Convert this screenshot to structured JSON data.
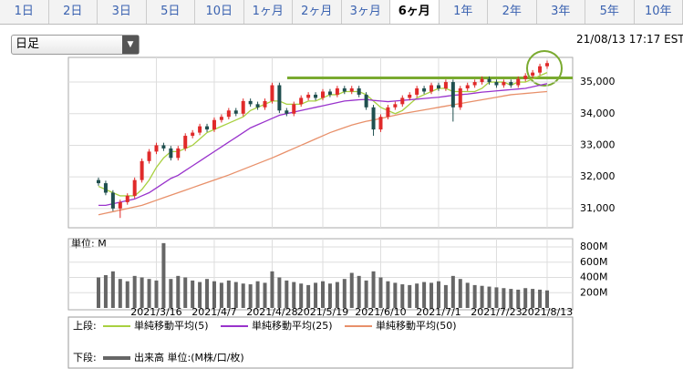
{
  "tabs": [
    "1日",
    "2日",
    "3日",
    "5日",
    "10日",
    "1ヶ月",
    "2ヶ月",
    "3ヶ月",
    "6ヶ月",
    "1年",
    "2年",
    "3年",
    "5年",
    "10年"
  ],
  "selected_tab": 8,
  "select_label": "日足",
  "timestamp": "21/08/13 17:17 EST",
  "legend": {
    "upper_label": "上段:",
    "lower_label": "下段:"
  },
  "chart_data": [
    {
      "type": "candlestick",
      "categories": [
        null,
        null,
        null,
        null,
        null,
        null,
        null,
        null,
        "2021/3/16",
        null,
        null,
        null,
        null,
        null,
        null,
        null,
        "2021/4/7",
        null,
        null,
        null,
        null,
        null,
        null,
        null,
        "2021/4/28",
        null,
        null,
        null,
        null,
        null,
        null,
        "2021/5/19",
        null,
        null,
        null,
        null,
        null,
        null,
        null,
        "2021/6/10",
        null,
        null,
        null,
        null,
        null,
        null,
        null,
        "2021/7/1",
        null,
        null,
        null,
        null,
        null,
        null,
        null,
        "2021/7/23",
        null,
        null,
        null,
        null,
        null,
        null,
        "2021/8/13"
      ],
      "open": [
        31900,
        31800,
        31500,
        31000,
        31200,
        31400,
        31900,
        32500,
        32800,
        33000,
        32900,
        32600,
        32900,
        33300,
        33400,
        33600,
        33500,
        33800,
        33900,
        34100,
        34000,
        34400,
        34300,
        34200,
        34400,
        34900,
        34100,
        34000,
        34300,
        34500,
        34600,
        34500,
        34700,
        34600,
        34800,
        34700,
        34800,
        34600,
        34200,
        33500,
        33900,
        34200,
        34300,
        34500,
        34600,
        34800,
        34700,
        34900,
        34800,
        35000,
        34200,
        34800,
        34900,
        35000,
        35100,
        35000,
        34900,
        35000,
        34900,
        35100,
        35200,
        35300,
        35500
      ],
      "high": [
        31980,
        31880,
        31580,
        31280,
        31480,
        31980,
        32580,
        32880,
        33080,
        33080,
        32980,
        32980,
        33380,
        33480,
        33680,
        33680,
        33880,
        33980,
        34180,
        34180,
        34480,
        34480,
        34380,
        34480,
        34980,
        34980,
        34180,
        34380,
        34580,
        34680,
        34680,
        34780,
        34780,
        34880,
        34880,
        34880,
        34880,
        34680,
        34280,
        33980,
        34280,
        34380,
        34580,
        34680,
        34880,
        34880,
        34980,
        34980,
        35080,
        35080,
        34880,
        34980,
        35080,
        35180,
        35180,
        35080,
        35080,
        35080,
        35180,
        35280,
        35380,
        35580,
        35680
      ],
      "low": [
        31720,
        31420,
        30920,
        30700,
        31120,
        31320,
        31820,
        32420,
        32720,
        32820,
        32520,
        32520,
        32820,
        33220,
        33320,
        33420,
        33420,
        33720,
        33820,
        33920,
        33920,
        34220,
        34120,
        34120,
        34320,
        34020,
        33920,
        33920,
        34220,
        34420,
        34420,
        34420,
        34520,
        34520,
        34620,
        34620,
        34520,
        34120,
        33300,
        33420,
        33820,
        34120,
        34220,
        34420,
        34520,
        34620,
        34620,
        34720,
        34720,
        33750,
        34120,
        34720,
        34820,
        34920,
        34920,
        34820,
        34820,
        34820,
        34820,
        35020,
        35120,
        35220,
        35420
      ],
      "close": [
        31800,
        31500,
        31000,
        31200,
        31400,
        31900,
        32500,
        32800,
        33000,
        32900,
        32600,
        32900,
        33300,
        33400,
        33600,
        33500,
        33800,
        33900,
        34100,
        34000,
        34400,
        34300,
        34200,
        34400,
        34900,
        34100,
        34000,
        34300,
        34500,
        34600,
        34500,
        34700,
        34600,
        34800,
        34700,
        34800,
        34600,
        34200,
        33500,
        33900,
        34200,
        34300,
        34500,
        34600,
        34800,
        34700,
        34900,
        34800,
        35000,
        34200,
        34800,
        34900,
        35000,
        35100,
        35000,
        34900,
        35000,
        34900,
        35100,
        35200,
        35300,
        35500,
        35600
      ],
      "up_color": "#e02a2a",
      "down_color": "#1f4f4f",
      "series": [
        {
          "name": "単純移動平均(5)",
          "color": "#a8d040",
          "values": [
            31700,
            31600,
            31500,
            31400,
            31400,
            31400,
            31600,
            31900,
            32300,
            32600,
            32800,
            32800,
            32900,
            33000,
            33200,
            33400,
            33500,
            33600,
            33700,
            33800,
            33900,
            34100,
            34200,
            34300,
            34400,
            34400,
            34300,
            34300,
            34300,
            34400,
            34400,
            34500,
            34600,
            34600,
            34700,
            34700,
            34700,
            34600,
            34400,
            34200,
            34100,
            34000,
            34100,
            34300,
            34500,
            34600,
            34700,
            34800,
            34800,
            34700,
            34700,
            34700,
            34700,
            34800,
            35000,
            35000,
            35000,
            34900,
            35000,
            35000,
            35100,
            35200,
            35300
          ]
        },
        {
          "name": "単純移動平均(25)",
          "color": "#9933cc",
          "values": [
            31100,
            31100,
            31150,
            31200,
            31250,
            31300,
            31400,
            31500,
            31650,
            31800,
            31950,
            32050,
            32200,
            32350,
            32500,
            32650,
            32800,
            32950,
            33100,
            33250,
            33400,
            33550,
            33650,
            33750,
            33850,
            33950,
            34000,
            34050,
            34100,
            34150,
            34200,
            34250,
            34300,
            34350,
            34400,
            34420,
            34440,
            34450,
            34420,
            34400,
            34380,
            34400,
            34420,
            34440,
            34460,
            34480,
            34500,
            34520,
            34550,
            34580,
            34600,
            34620,
            34650,
            34680,
            34700,
            34720,
            34740,
            34760,
            34780,
            34800,
            34850,
            34900,
            34950
          ]
        },
        {
          "name": "単純移動平均(50)",
          "color": "#e8906a",
          "values": [
            30800,
            30850,
            30900,
            30950,
            31000,
            31050,
            31100,
            31180,
            31260,
            31340,
            31420,
            31500,
            31580,
            31660,
            31740,
            31820,
            31900,
            31980,
            32060,
            32150,
            32240,
            32330,
            32420,
            32510,
            32600,
            32700,
            32800,
            32900,
            33000,
            33100,
            33200,
            33300,
            33400,
            33480,
            33560,
            33640,
            33700,
            33760,
            33800,
            33850,
            33900,
            33950,
            34000,
            34040,
            34080,
            34120,
            34160,
            34200,
            34240,
            34280,
            34320,
            34360,
            34400,
            34440,
            34480,
            34520,
            34560,
            34600,
            34620,
            34640,
            34660,
            34680,
            34700
          ]
        }
      ],
      "annotation_level": 35130,
      "annotation_color": "#7aaa30",
      "ylim": [
        30390,
        35780
      ],
      "yticks": [
        {
          "value": 31000,
          "label": "31,000"
        },
        {
          "value": 32000,
          "label": "32,000"
        },
        {
          "value": 33000,
          "label": "33,000"
        },
        {
          "value": 34000,
          "label": "34,000"
        },
        {
          "value": 35000,
          "label": "35,000"
        }
      ],
      "grid": true
    },
    {
      "type": "bar",
      "unit_label": "単位: M",
      "series": [
        {
          "name": "出来高 単位:(M株/口/枚)",
          "color": "#666666",
          "values": [
            400,
            430,
            480,
            380,
            350,
            420,
            400,
            380,
            360,
            850,
            380,
            420,
            400,
            360,
            340,
            380,
            350,
            330,
            360,
            340,
            320,
            310,
            350,
            330,
            480,
            400,
            360,
            340,
            320,
            300,
            330,
            350,
            320,
            340,
            380,
            460,
            420,
            360,
            480,
            400,
            350,
            330,
            310,
            300,
            320,
            340,
            330,
            350,
            300,
            420,
            380,
            330,
            300,
            290,
            280,
            270,
            260,
            250,
            240,
            260,
            250,
            240,
            230
          ]
        }
      ],
      "ylim": [
        0,
        908
      ],
      "yticks": [
        {
          "value": 200,
          "label": "200M"
        },
        {
          "value": 400,
          "label": "400M"
        },
        {
          "value": 600,
          "label": "600M"
        },
        {
          "value": 800,
          "label": "800M"
        }
      ],
      "grid": true
    }
  ]
}
